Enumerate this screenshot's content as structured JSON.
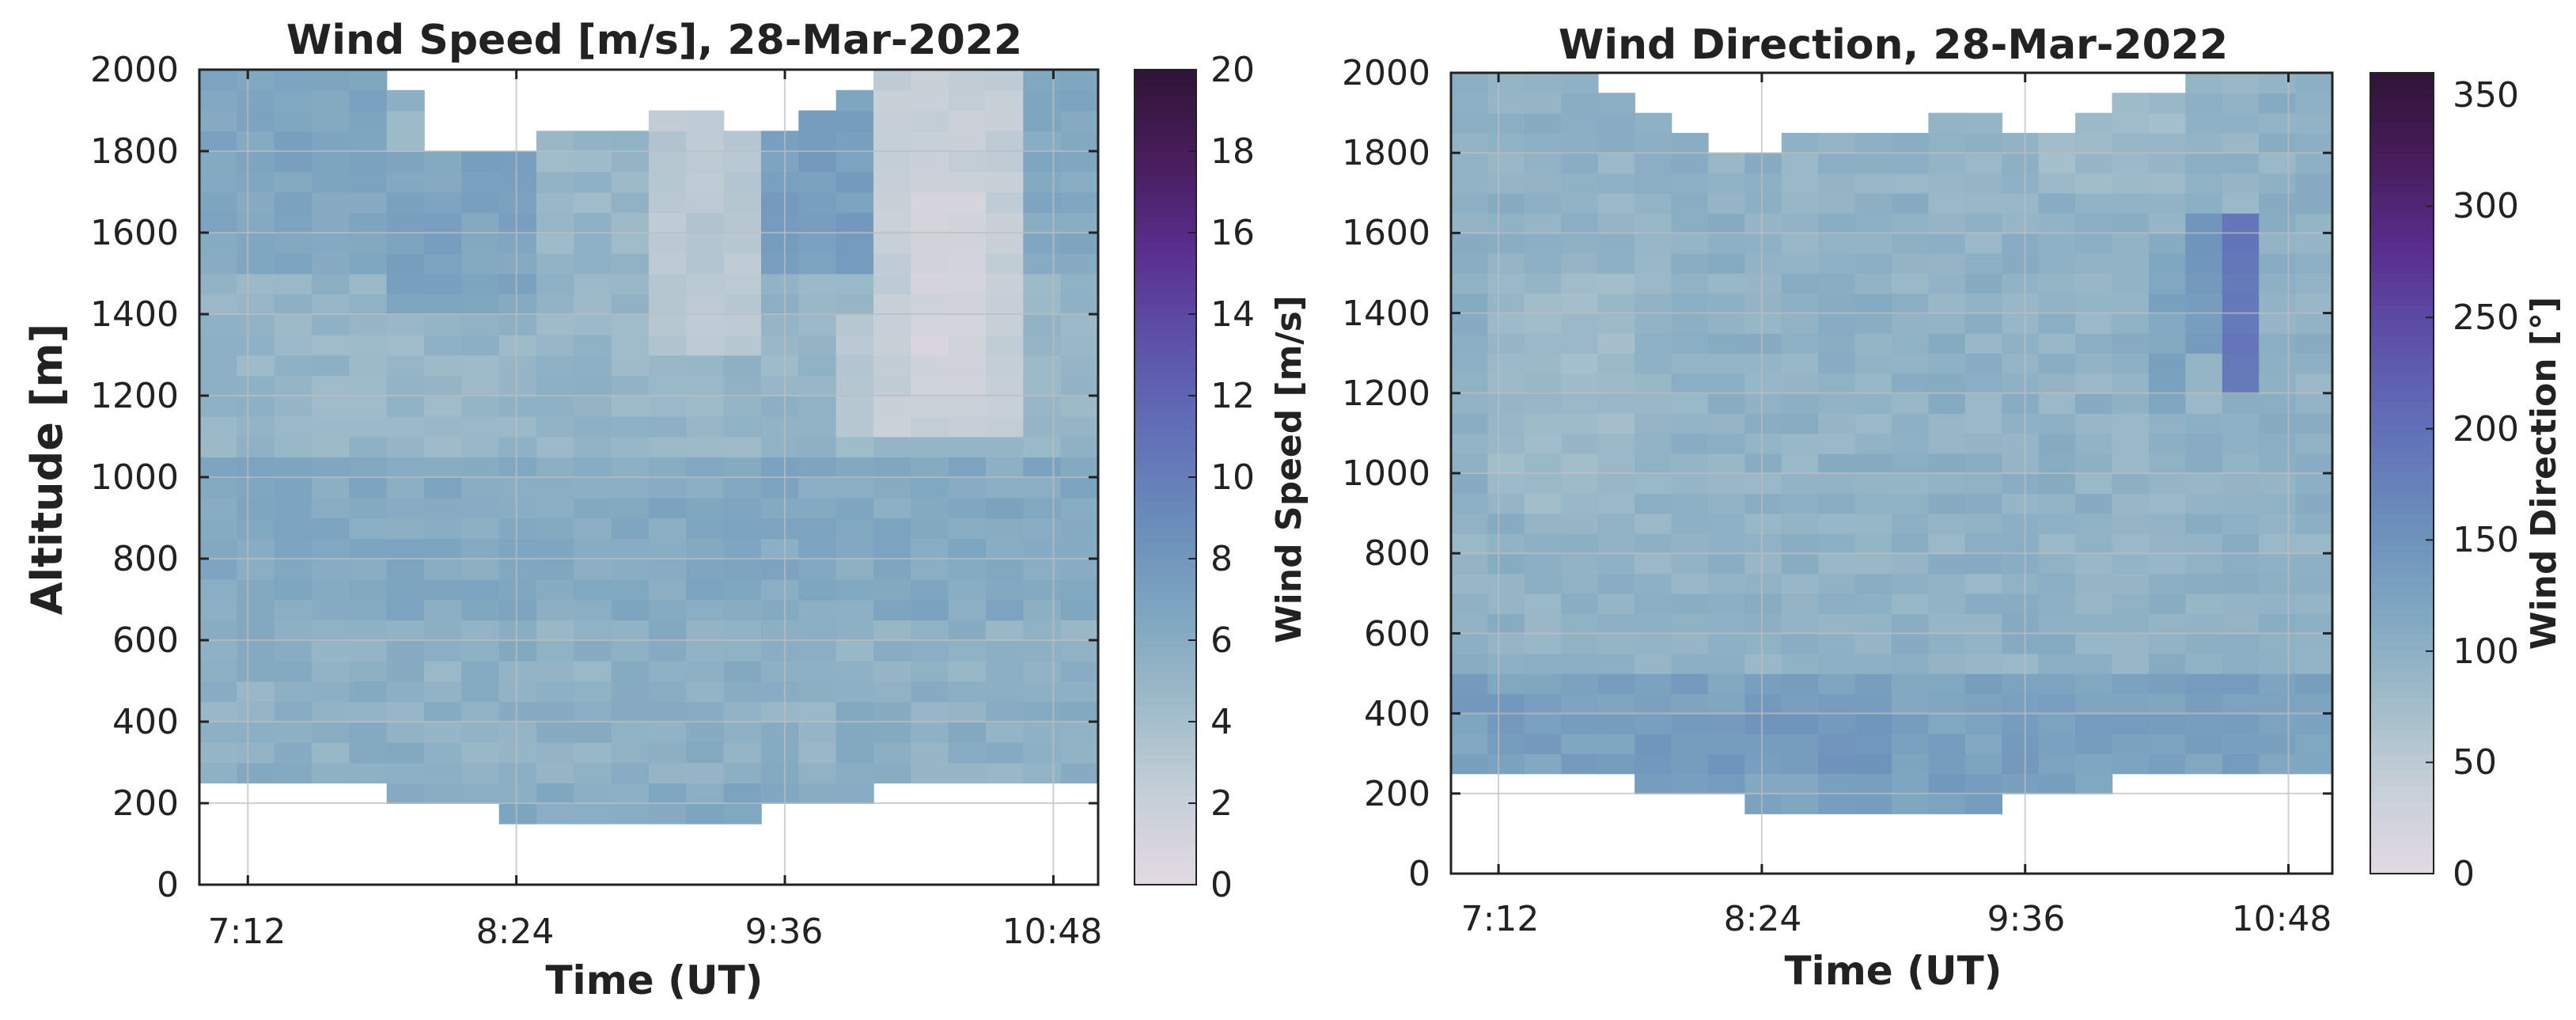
{
  "figure": {
    "colormap_name": "twilight",
    "colormap": [
      "#e2d9e2",
      "#c6cfd7",
      "#9ebbc9",
      "#7ea6c0",
      "#6a8dbb",
      "#6270b8",
      "#5d52aa",
      "#5a2e8f",
      "#481d5c",
      "#301437"
    ]
  },
  "chart_data": [
    {
      "type": "heatmap",
      "title": "Wind Speed [m/s], 28-Mar-2022",
      "xlabel": "Time (UT)",
      "ylabel": "Altitude [m]",
      "xticks": [
        {
          "value": 432,
          "label": "7:12"
        },
        {
          "value": 504,
          "label": "8:24"
        },
        {
          "value": 576,
          "label": "9:36"
        },
        {
          "value": 648,
          "label": "10:48"
        }
      ],
      "xlim": [
        419,
        660
      ],
      "yticks": [
        0,
        200,
        400,
        600,
        800,
        1000,
        1200,
        1400,
        1600,
        1800,
        2000
      ],
      "ylim": [
        0,
        2000
      ],
      "grid": true,
      "colorbar": {
        "label": "Wind Speed [m/s]",
        "ticks": [
          0,
          2,
          4,
          6,
          8,
          10,
          12,
          14,
          16,
          18,
          20
        ],
        "range": [
          0,
          20
        ]
      },
      "field": {
        "time_range_min": [
          419,
          660
        ],
        "n_cols": 24,
        "alt_step": 50,
        "alt_top": 2000,
        "top_alt": [
          2000,
          2000,
          2000,
          2000,
          2000,
          1950,
          1800,
          1800,
          1800,
          1850,
          1850,
          1850,
          1900,
          1900,
          1850,
          1850,
          1900,
          1950,
          2000,
          2000,
          2000,
          2000,
          2000,
          2000
        ],
        "bottom_alt": [
          250,
          250,
          250,
          250,
          250,
          200,
          200,
          200,
          150,
          150,
          150,
          150,
          150,
          150,
          150,
          200,
          200,
          200,
          250,
          250,
          250,
          250,
          250,
          250
        ],
        "regions": [
          {
            "c0": 0,
            "c1": 23,
            "a0": 150,
            "a1": 1050,
            "value": 6.3,
            "noise": 0.7
          },
          {
            "c0": 0,
            "c1": 23,
            "a0": 1050,
            "a1": 2000,
            "value": 5.0,
            "noise": 0.7
          },
          {
            "c0": 0,
            "c1": 4,
            "a0": 1500,
            "a1": 2000,
            "value": 6.6,
            "noise": 0.6
          },
          {
            "c0": 5,
            "c1": 8,
            "a0": 1400,
            "a1": 1800,
            "value": 6.8,
            "noise": 0.6
          },
          {
            "c0": 12,
            "c1": 14,
            "a0": 1300,
            "a1": 1900,
            "value": 3.0,
            "noise": 0.5
          },
          {
            "c0": 15,
            "c1": 17,
            "a0": 1500,
            "a1": 2000,
            "value": 7.3,
            "noise": 0.6
          },
          {
            "c0": 18,
            "c1": 21,
            "a0": 1100,
            "a1": 2000,
            "value": 2.2,
            "noise": 0.5
          },
          {
            "c0": 17,
            "c1": 17,
            "a0": 1100,
            "a1": 1400,
            "value": 3.0,
            "noise": 0.4
          },
          {
            "c0": 19,
            "c1": 20,
            "a0": 1200,
            "a1": 1700,
            "value": 1.2,
            "noise": 0.4
          },
          {
            "c0": 22,
            "c1": 23,
            "a0": 1500,
            "a1": 2000,
            "value": 6.4,
            "noise": 0.6
          },
          {
            "c0": 0,
            "c1": 23,
            "a0": 250,
            "a1": 650,
            "value": 5.6,
            "noise": 0.8
          }
        ]
      }
    },
    {
      "type": "heatmap",
      "title": "Wind Direction, 28-Mar-2022",
      "xlabel": "Time (UT)",
      "ylabel": "",
      "xticks": [
        {
          "value": 432,
          "label": "7:12"
        },
        {
          "value": 504,
          "label": "8:24"
        },
        {
          "value": 576,
          "label": "9:36"
        },
        {
          "value": 648,
          "label": "10:48"
        }
      ],
      "xlim": [
        419,
        660
      ],
      "yticks": [
        0,
        200,
        400,
        600,
        800,
        1000,
        1200,
        1400,
        1600,
        1800,
        2000
      ],
      "ylim": [
        0,
        2000
      ],
      "grid": true,
      "colorbar": {
        "label": "Wind Direction [°]",
        "ticks": [
          0,
          50,
          100,
          150,
          200,
          250,
          300,
          350
        ],
        "range": [
          0,
          360
        ]
      },
      "field": {
        "time_range_min": [
          419,
          660
        ],
        "n_cols": 24,
        "alt_step": 50,
        "alt_top": 2000,
        "top_alt": [
          2000,
          2000,
          2000,
          2000,
          1950,
          1900,
          1850,
          1800,
          1800,
          1850,
          1850,
          1850,
          1850,
          1900,
          1900,
          1850,
          1850,
          1900,
          1950,
          1950,
          2000,
          2000,
          2000,
          2000
        ],
        "bottom_alt": [
          250,
          250,
          250,
          250,
          250,
          200,
          200,
          200,
          150,
          150,
          150,
          150,
          150,
          150,
          150,
          200,
          200,
          200,
          250,
          250,
          250,
          250,
          250,
          250
        ],
        "regions": [
          {
            "c0": 0,
            "c1": 23,
            "a0": 150,
            "a1": 2000,
            "value": 98,
            "noise": 13
          },
          {
            "c0": 0,
            "c1": 23,
            "a0": 150,
            "a1": 500,
            "value": 128,
            "noise": 14
          },
          {
            "c0": 5,
            "c1": 11,
            "a0": 250,
            "a1": 400,
            "value": 140,
            "noise": 10
          },
          {
            "c0": 1,
            "c1": 4,
            "a0": 900,
            "a1": 1500,
            "value": 82,
            "noise": 10
          },
          {
            "c0": 16,
            "c1": 19,
            "a0": 1700,
            "a1": 2000,
            "value": 82,
            "noise": 10
          },
          {
            "c0": 20,
            "c1": 20,
            "a0": 1300,
            "a1": 1650,
            "value": 140,
            "noise": 8
          },
          {
            "c0": 21,
            "c1": 21,
            "a0": 1200,
            "a1": 1650,
            "value": 188,
            "noise": 6
          },
          {
            "c0": 19,
            "c1": 19,
            "a0": 1150,
            "a1": 1550,
            "value": 120,
            "noise": 10
          }
        ]
      }
    }
  ]
}
